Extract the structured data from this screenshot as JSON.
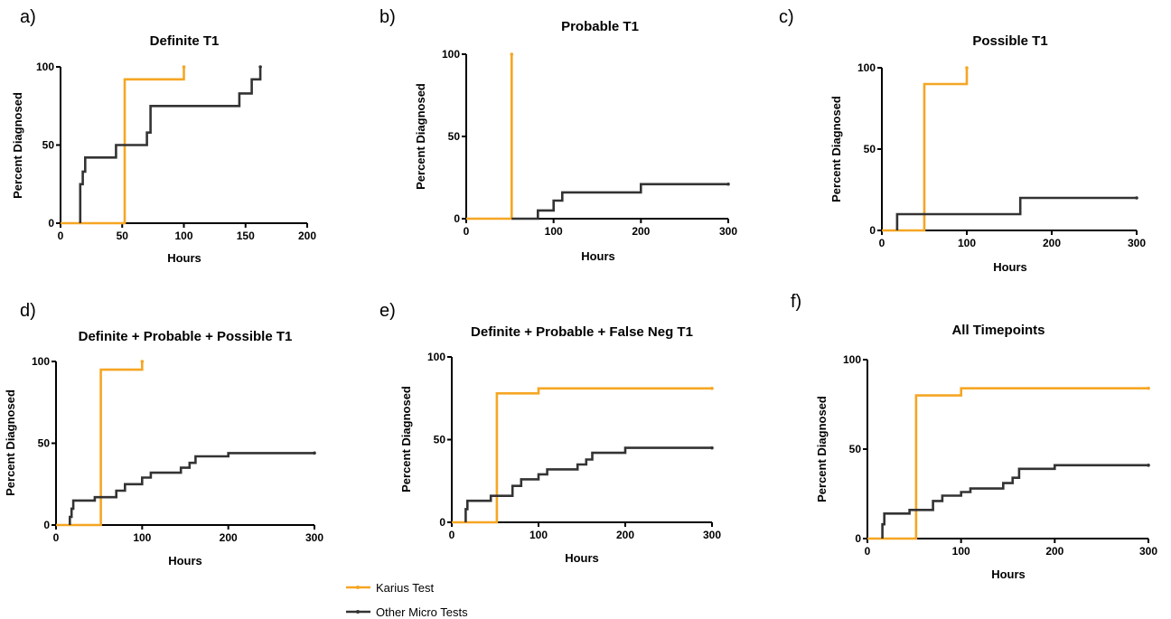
{
  "colors": {
    "karius": "#F5A623",
    "other": "#333333",
    "axis": "#000000"
  },
  "legend": [
    {
      "name": "Karius Test",
      "color_key": "karius"
    },
    {
      "name": "Other Micro Tests",
      "color_key": "other"
    }
  ],
  "chart_data": [
    {
      "panel": "a)",
      "type": "line",
      "title": "Definite T1",
      "xlabel": "Hours",
      "ylabel": "Percent Diagnosed",
      "xlim": [
        0,
        200
      ],
      "ylim": [
        0,
        100
      ],
      "xticks": [
        0,
        50,
        100,
        150,
        200
      ],
      "yticks": [
        0,
        50,
        100
      ],
      "series": [
        {
          "name": "Karius Test",
          "color_key": "karius",
          "x": [
            0,
            52,
            52,
            100,
            100
          ],
          "y": [
            0,
            0,
            92,
            92,
            100
          ]
        },
        {
          "name": "Other Micro Tests",
          "color_key": "other",
          "x": [
            16,
            16,
            18,
            18,
            20,
            20,
            45,
            45,
            70,
            70,
            73,
            73,
            145,
            145,
            155,
            155,
            162,
            162
          ],
          "y": [
            0,
            25,
            25,
            33,
            33,
            42,
            42,
            50,
            50,
            58,
            58,
            75,
            75,
            83,
            83,
            92,
            92,
            100
          ]
        }
      ]
    },
    {
      "panel": "b)",
      "type": "line",
      "title": "Probable T1",
      "xlabel": "Hours",
      "ylabel": "Percent Diagnosed",
      "xlim": [
        0,
        300
      ],
      "ylim": [
        0,
        100
      ],
      "xticks": [
        0,
        100,
        200,
        300
      ],
      "yticks": [
        0,
        50,
        100
      ],
      "series": [
        {
          "name": "Karius Test",
          "color_key": "karius",
          "x": [
            0,
            52,
            52
          ],
          "y": [
            0,
            0,
            100
          ]
        },
        {
          "name": "Other Micro Tests",
          "color_key": "other",
          "x": [
            52,
            82,
            82,
            100,
            100,
            110,
            110,
            200,
            200,
            300
          ],
          "y": [
            0,
            0,
            5,
            5,
            11,
            11,
            16,
            16,
            21,
            21
          ]
        }
      ]
    },
    {
      "panel": "c)",
      "type": "line",
      "title": "Possible T1",
      "xlabel": "Hours",
      "ylabel": "Percent Diagnosed",
      "xlim": [
        0,
        300
      ],
      "ylim": [
        0,
        100
      ],
      "xticks": [
        0,
        100,
        200,
        300
      ],
      "yticks": [
        0,
        50,
        100
      ],
      "series": [
        {
          "name": "Karius Test",
          "color_key": "karius",
          "x": [
            0,
            50,
            50,
            100,
            100
          ],
          "y": [
            0,
            0,
            90,
            90,
            100
          ]
        },
        {
          "name": "Other Micro Tests",
          "color_key": "other",
          "x": [
            18,
            18,
            163,
            163,
            300
          ],
          "y": [
            0,
            10,
            10,
            20,
            20
          ]
        }
      ]
    },
    {
      "panel": "d)",
      "type": "line",
      "title": "Definite + Probable + Possible T1",
      "xlabel": "Hours",
      "ylabel": "Percent Diagnosed",
      "xlim": [
        0,
        300
      ],
      "ylim": [
        0,
        100
      ],
      "xticks": [
        0,
        100,
        200,
        300
      ],
      "yticks": [
        0,
        50,
        100
      ],
      "series": [
        {
          "name": "Karius Test",
          "color_key": "karius",
          "x": [
            0,
            52,
            52,
            100,
            100
          ],
          "y": [
            0,
            0,
            95,
            95,
            100
          ]
        },
        {
          "name": "Other Micro Tests",
          "color_key": "other",
          "x": [
            16,
            16,
            18,
            18,
            20,
            20,
            45,
            45,
            70,
            70,
            80,
            80,
            100,
            100,
            110,
            110,
            145,
            145,
            155,
            155,
            162,
            162,
            200,
            200,
            300
          ],
          "y": [
            0,
            5,
            5,
            10,
            10,
            15,
            15,
            17,
            17,
            21,
            21,
            25,
            25,
            29,
            29,
            32,
            32,
            35,
            35,
            38,
            38,
            42,
            42,
            44,
            44
          ]
        }
      ]
    },
    {
      "panel": "e)",
      "type": "line",
      "title": "Definite + Probable + False Neg T1",
      "xlabel": "Hours",
      "ylabel": "Percent Diagnosed",
      "xlim": [
        0,
        300
      ],
      "ylim": [
        0,
        100
      ],
      "xticks": [
        0,
        100,
        200,
        300
      ],
      "yticks": [
        0,
        50,
        100
      ],
      "series": [
        {
          "name": "Karius Test",
          "color_key": "karius",
          "x": [
            0,
            52,
            52,
            100,
            100,
            300
          ],
          "y": [
            0,
            0,
            78,
            78,
            81,
            81
          ]
        },
        {
          "name": "Other Micro Tests",
          "color_key": "other",
          "x": [
            16,
            16,
            18,
            18,
            45,
            45,
            70,
            70,
            80,
            80,
            100,
            100,
            110,
            110,
            145,
            145,
            155,
            155,
            162,
            162,
            200,
            200,
            300
          ],
          "y": [
            0,
            8,
            8,
            13,
            13,
            16,
            16,
            22,
            22,
            26,
            26,
            29,
            29,
            32,
            32,
            35,
            35,
            38,
            38,
            42,
            42,
            45,
            45
          ]
        }
      ]
    },
    {
      "panel": "f)",
      "type": "line",
      "title": "All Timepoints",
      "xlabel": "Hours",
      "ylabel": "Percent Diagnosed",
      "xlim": [
        0,
        300
      ],
      "ylim": [
        0,
        100
      ],
      "xticks": [
        0,
        100,
        200,
        300
      ],
      "yticks": [
        0,
        50,
        100
      ],
      "series": [
        {
          "name": "Karius Test",
          "color_key": "karius",
          "x": [
            0,
            52,
            52,
            100,
            100,
            300
          ],
          "y": [
            0,
            0,
            80,
            80,
            84,
            84
          ]
        },
        {
          "name": "Other Micro Tests",
          "color_key": "other",
          "x": [
            16,
            16,
            18,
            18,
            45,
            45,
            70,
            70,
            80,
            80,
            100,
            100,
            110,
            110,
            145,
            145,
            155,
            155,
            162,
            162,
            200,
            200,
            300
          ],
          "y": [
            0,
            8,
            8,
            14,
            14,
            16,
            16,
            21,
            21,
            24,
            24,
            26,
            26,
            28,
            28,
            31,
            31,
            34,
            34,
            39,
            39,
            41,
            41
          ]
        }
      ]
    }
  ]
}
